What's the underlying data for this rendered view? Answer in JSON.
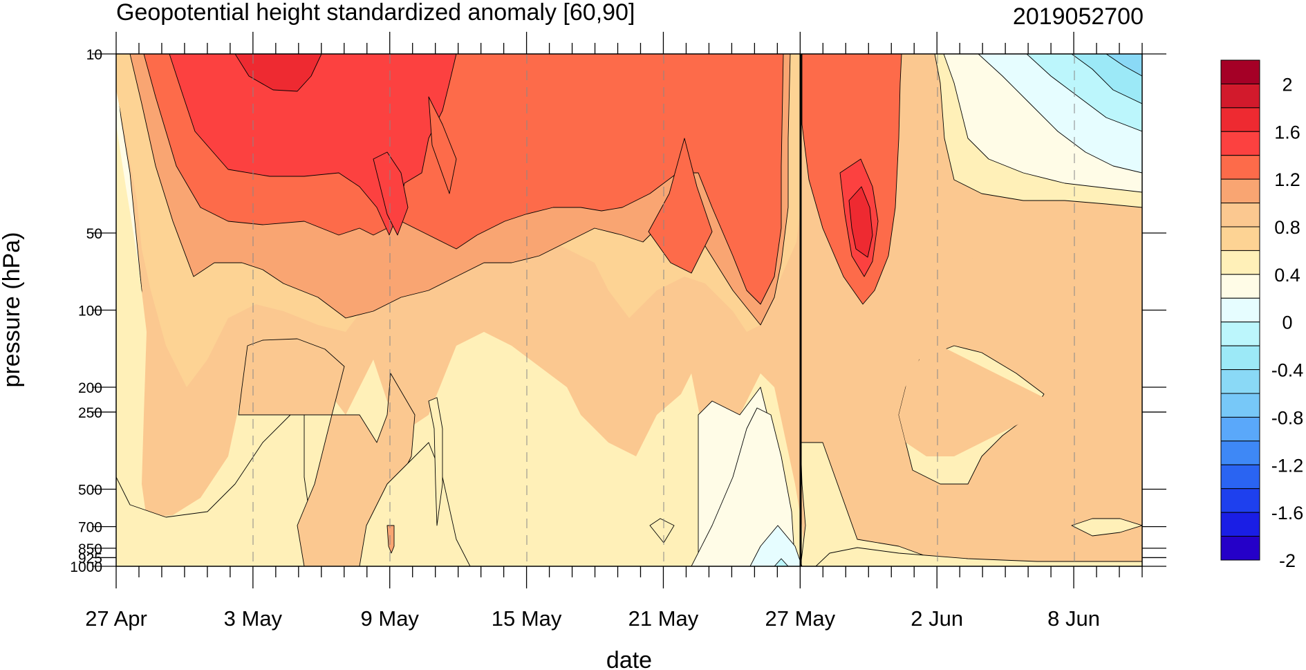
{
  "chart_data": {
    "type": "heatmap",
    "title": "Geopotential height standardized anomaly [60,90]",
    "date_stamp": "2019052700",
    "xlabel": "date",
    "ylabel": "pressure (hPa)",
    "x_tick_labels": [
      "27 Apr",
      "3 May",
      "9 May",
      "15 May",
      "21 May",
      "27 May",
      "2 Jun",
      "8 Jun"
    ],
    "x_range": [
      "27 Apr",
      "11 Jun"
    ],
    "current_date_line": "27 May",
    "y_scale": "log",
    "y_ticks": [
      10,
      50,
      100,
      200,
      250,
      500,
      700,
      850,
      925,
      1000
    ],
    "y_tick_labels": [
      "10",
      "50",
      "100",
      "200",
      "250",
      "500",
      "700",
      "850",
      "925",
      "1000"
    ],
    "y_range": [
      1000,
      10
    ],
    "colorbar": {
      "labels": [
        "2",
        "1.6",
        "1.2",
        "0.8",
        "0.4",
        "0",
        "-0.4",
        "-0.8",
        "-1.2",
        "-1.6",
        "-2"
      ],
      "levels": [
        2.2,
        2.0,
        1.8,
        1.6,
        1.4,
        1.2,
        1.0,
        0.8,
        0.6,
        0.4,
        0.2,
        0,
        -0.2,
        -0.4,
        -0.6,
        -0.8,
        -1.0,
        -1.2,
        -1.4,
        -1.6,
        -1.8,
        -2.0,
        -2.2
      ],
      "colors": [
        "#a50026",
        "#d21a2c",
        "#ee2a31",
        "#fc4140",
        "#fd6b4a",
        "#f9a572",
        "#fbc890",
        "#fdd394",
        "#fff0b8",
        "#fffce7",
        "#e6fdff",
        "#bcf6fc",
        "#9ce9f7",
        "#8ad9f6",
        "#77c8f8",
        "#5aa8fa",
        "#3e88f6",
        "#2a64f2",
        "#1e40ee",
        "#1a1ee5",
        "#2500c8"
      ]
    },
    "grid_lines": "dashed vertical at date ticks",
    "legend": "colorbar-right"
  }
}
